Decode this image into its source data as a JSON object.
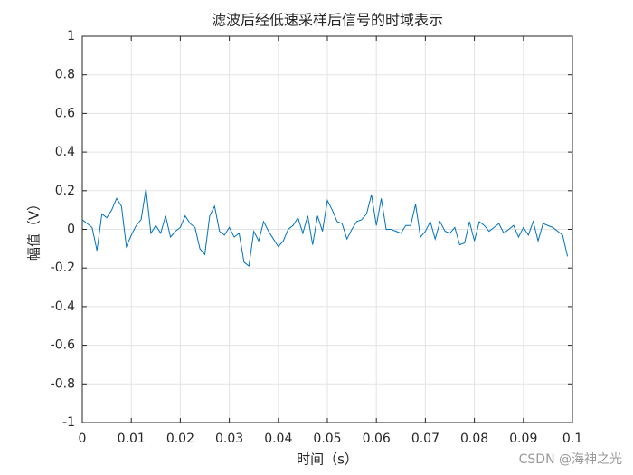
{
  "chart_data": {
    "type": "line",
    "title": "滤波后经低速采样后信号的时域表示",
    "x_label": "时间（s）",
    "y_label": "幅值（V）",
    "watermark": "CSDN @海神之光",
    "x": [
      0,
      0.001,
      0.002,
      0.003,
      0.004,
      0.005,
      0.006,
      0.007,
      0.008,
      0.009,
      0.01,
      0.011,
      0.012,
      0.013,
      0.014,
      0.015,
      0.016,
      0.017,
      0.018,
      0.019,
      0.02,
      0.021,
      0.022,
      0.023,
      0.024,
      0.025,
      0.026,
      0.027,
      0.028,
      0.029,
      0.03,
      0.031,
      0.032,
      0.033,
      0.034,
      0.035,
      0.036,
      0.037,
      0.038,
      0.039,
      0.04,
      0.041,
      0.042,
      0.043,
      0.044,
      0.045,
      0.046,
      0.047,
      0.048,
      0.049,
      0.05,
      0.051,
      0.052,
      0.053,
      0.054,
      0.055,
      0.056,
      0.057,
      0.058,
      0.059,
      0.06,
      0.061,
      0.062,
      0.063,
      0.064,
      0.065,
      0.066,
      0.067,
      0.068,
      0.069,
      0.07,
      0.071,
      0.072,
      0.073,
      0.074,
      0.075,
      0.076,
      0.077,
      0.078,
      0.079,
      0.08,
      0.081,
      0.082,
      0.083,
      0.084,
      0.085,
      0.086,
      0.087,
      0.088,
      0.089,
      0.09,
      0.091,
      0.092,
      0.093,
      0.094,
      0.095,
      0.096,
      0.097,
      0.098,
      0.099
    ],
    "series": [
      {
        "color": "#0072bd",
        "values": [
          0.05,
          0.03,
          0.01,
          -0.11,
          0.08,
          0.06,
          0.1,
          0.16,
          0.12,
          -0.09,
          -0.03,
          0.02,
          0.05,
          0.21,
          -0.02,
          0.02,
          -0.02,
          0.07,
          -0.04,
          -0.01,
          0.01,
          0.07,
          0.03,
          0.01,
          -0.1,
          -0.13,
          0.07,
          0.12,
          -0.01,
          -0.03,
          0.01,
          -0.04,
          -0.02,
          -0.17,
          -0.19,
          -0.01,
          -0.06,
          0.04,
          -0.01,
          -0.05,
          -0.09,
          -0.06,
          0.0,
          0.02,
          0.06,
          -0.02,
          0.07,
          -0.08,
          0.07,
          -0.01,
          0.15,
          0.1,
          0.04,
          0.03,
          -0.05,
          0.0,
          0.04,
          0.05,
          0.08,
          0.18,
          0.02,
          0.16,
          0.0,
          0.0,
          -0.01,
          -0.02,
          0.02,
          0.02,
          0.13,
          -0.04,
          -0.01,
          0.04,
          -0.05,
          0.04,
          -0.01,
          -0.02,
          0.01,
          -0.08,
          -0.07,
          0.04,
          -0.06,
          0.04,
          0.02,
          -0.01,
          0.01,
          0.03,
          -0.02,
          0.0,
          0.02,
          -0.04,
          0.01,
          -0.03,
          0.04,
          -0.06,
          0.03,
          0.02,
          0.01,
          -0.01,
          -0.03,
          -0.14
        ]
      }
    ],
    "xlim": [
      0,
      0.1
    ],
    "ylim": [
      -1,
      1
    ],
    "xticks": [
      0,
      0.01,
      0.02,
      0.03,
      0.04,
      0.05,
      0.06,
      0.07,
      0.08,
      0.09,
      0.1
    ],
    "yticks": [
      -1,
      -0.8,
      -0.6,
      -0.4,
      -0.2,
      0,
      0.2,
      0.4,
      0.6,
      0.8,
      1
    ],
    "grid": true
  }
}
